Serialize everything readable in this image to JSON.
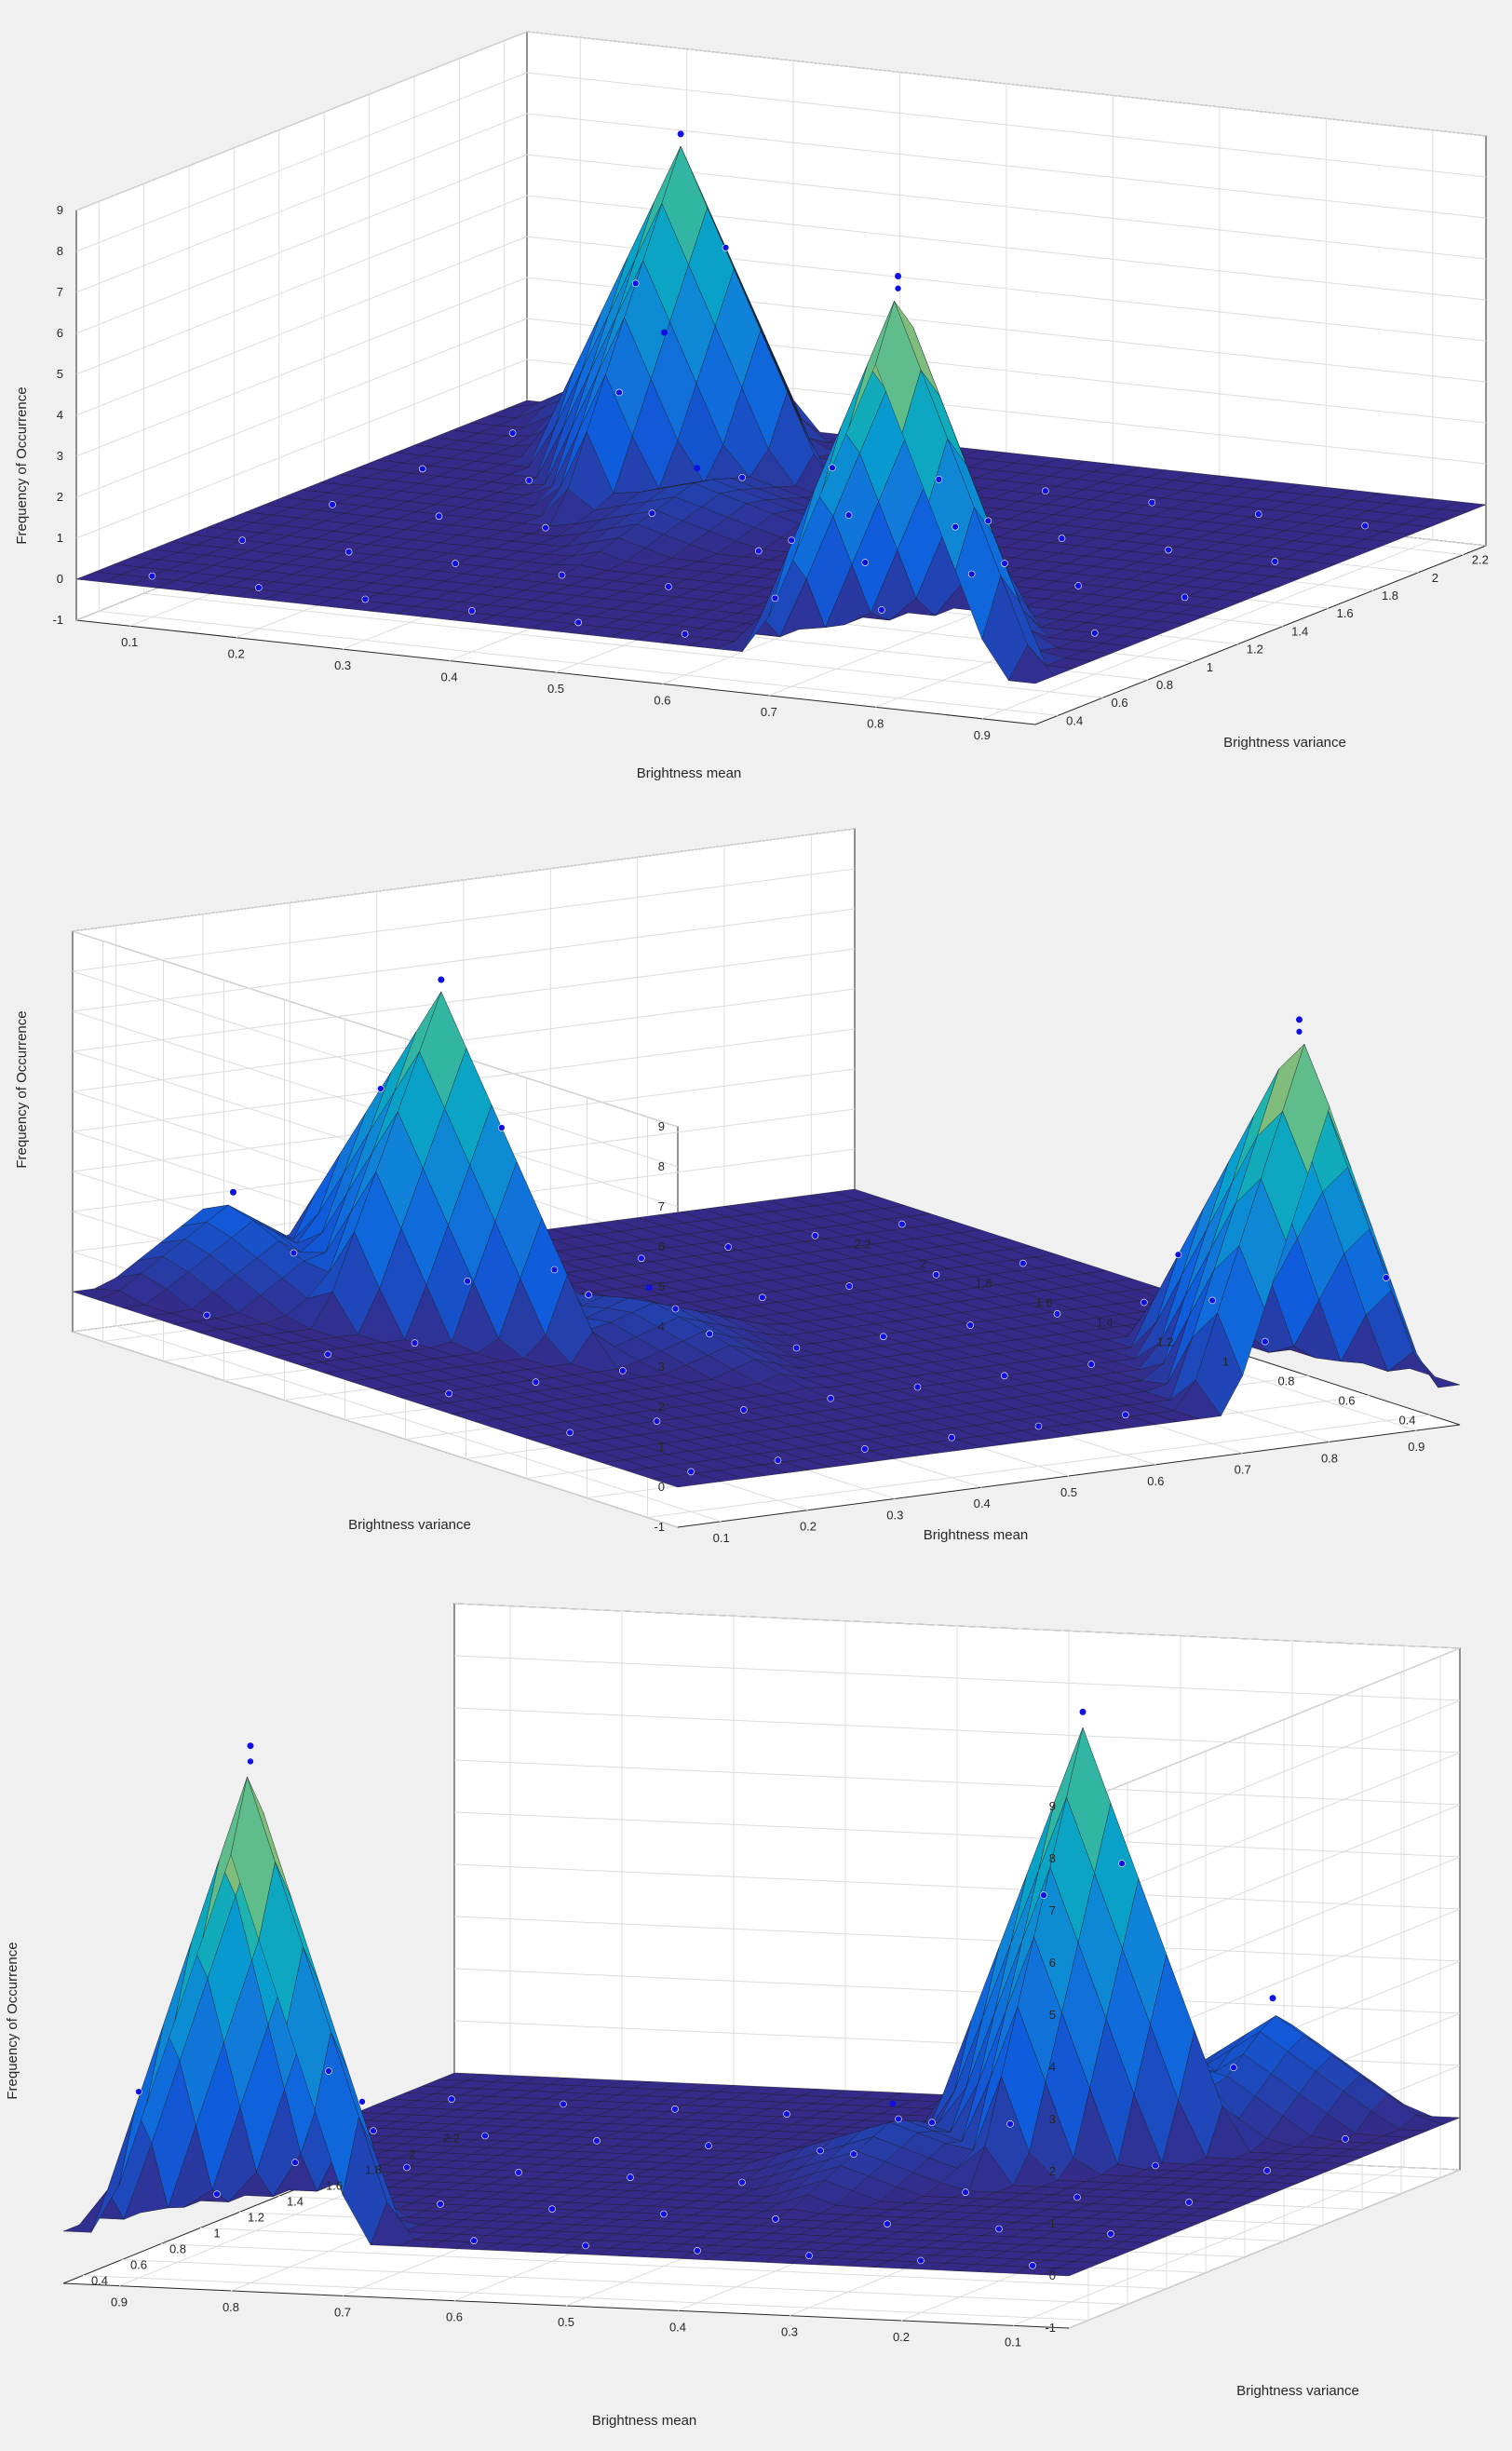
{
  "figure": {
    "background": "#f0f0f0",
    "colormap": "parula"
  },
  "chart_data": [
    {
      "type": "surface",
      "title": "",
      "xlabel": "Brightness mean",
      "ylabel": "Brightness variance",
      "zlabel": "Frequency of Occurrence",
      "xlim": [
        0.05,
        0.95
      ],
      "ylim": [
        0.3,
        2.3
      ],
      "zlim": [
        -1,
        9
      ],
      "x_ticks": [
        0.1,
        0.2,
        0.3,
        0.4,
        0.5,
        0.6,
        0.7,
        0.8,
        0.9
      ],
      "y_ticks": [
        0.4,
        0.6,
        0.8,
        1,
        1.2,
        1.4,
        1.6,
        1.8,
        2,
        2.2
      ],
      "z_ticks": [
        -1,
        0,
        1,
        2,
        3,
        4,
        5,
        6,
        7,
        8,
        9
      ],
      "peaks": [
        {
          "x": 0.3,
          "y": 1.8,
          "z": 8
        },
        {
          "x": 0.8,
          "y": 0.4,
          "z": 9
        },
        {
          "x": 0.2,
          "y": 2.2,
          "z": 2
        },
        {
          "x": 0.4,
          "y": 1.4,
          "z": 1
        }
      ],
      "grid": true,
      "markers": "data points (blue circles)"
    },
    {
      "type": "surface",
      "title": "",
      "xlabel": "Brightness mean",
      "ylabel": "Brightness variance",
      "zlabel": "Frequency of Occurrence",
      "xlim": [
        0.05,
        0.95
      ],
      "ylim": [
        0.3,
        2.3
      ],
      "zlim": [
        -1,
        9
      ],
      "x_ticks": [
        0.1,
        0.2,
        0.3,
        0.4,
        0.5,
        0.6,
        0.7,
        0.8,
        0.9
      ],
      "y_ticks": [
        0.4,
        0.6,
        0.8,
        1,
        1.2,
        1.4,
        1.6,
        1.8,
        2,
        2.2
      ],
      "z_ticks": [
        -1,
        0,
        1,
        2,
        3,
        4,
        5,
        6,
        7,
        8,
        9
      ],
      "peaks": [
        {
          "x": 0.3,
          "y": 1.8,
          "z": 8
        },
        {
          "x": 0.8,
          "y": 0.4,
          "z": 9
        },
        {
          "x": 0.2,
          "y": 2.2,
          "z": 2
        },
        {
          "x": 0.4,
          "y": 1.4,
          "z": 1
        }
      ],
      "grid": true,
      "markers": "data points (blue circles)"
    },
    {
      "type": "surface",
      "title": "",
      "xlabel": "Brightness mean",
      "ylabel": "Brightness variance",
      "zlabel": "Frequency of Occurrence",
      "xlim": [
        0.05,
        0.95
      ],
      "ylim": [
        0.3,
        2.3
      ],
      "zlim": [
        -1,
        9
      ],
      "x_ticks": [
        0.9,
        0.8,
        0.7,
        0.6,
        0.5,
        0.4,
        0.3,
        0.2,
        0.1
      ],
      "y_ticks": [
        0.4,
        0.6,
        0.8,
        1,
        1.2,
        1.4,
        1.6,
        1.8,
        2,
        2.2
      ],
      "z_ticks": [
        -1,
        0,
        1,
        2,
        3,
        4,
        5,
        6,
        7,
        8,
        9
      ],
      "peaks": [
        {
          "x": 0.3,
          "y": 1.8,
          "z": 8
        },
        {
          "x": 0.8,
          "y": 0.4,
          "z": 9
        },
        {
          "x": 0.2,
          "y": 2.2,
          "z": 2
        },
        {
          "x": 0.4,
          "y": 1.4,
          "z": 1
        }
      ],
      "grid": true,
      "markers": "data points (blue circles)"
    }
  ]
}
